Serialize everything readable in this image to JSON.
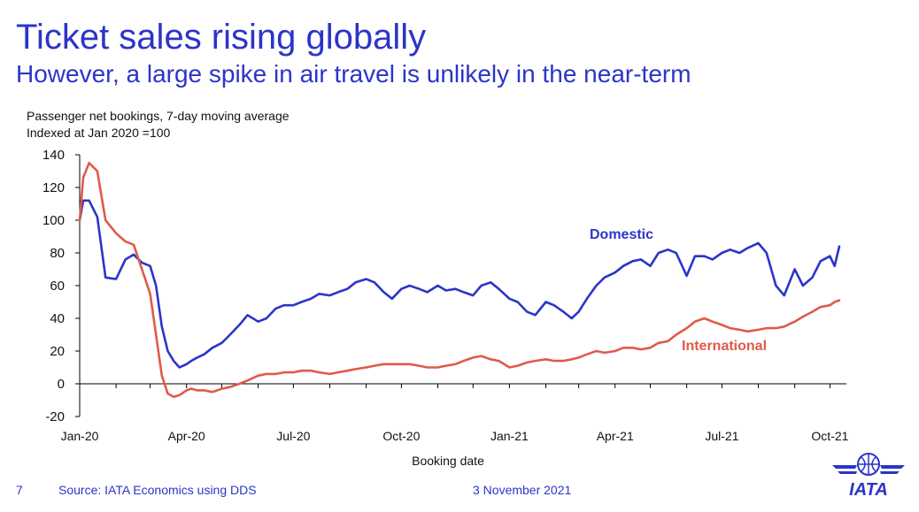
{
  "header": {
    "title": "Ticket sales rising globally",
    "subtitle": "However, a large spike in air travel is unlikely in the near-term"
  },
  "notes": {
    "line1": "Passenger net bookings,  7-day moving average",
    "line2": "Indexed at Jan 2020 =100"
  },
  "footer": {
    "page": "7",
    "source": "Source: IATA Economics using DDS",
    "date": "3 November 2021"
  },
  "logo": {
    "text": "IATA"
  },
  "colors": {
    "brand": "#2b35c8",
    "domestic": "#2b35c8",
    "international": "#e05a48"
  },
  "chart_data": {
    "type": "line",
    "xlabel": "Booking date",
    "ylabel": "",
    "ylim": [
      -20,
      140
    ],
    "yticks": [
      -20,
      0,
      20,
      40,
      60,
      80,
      100,
      120,
      140
    ],
    "x_ticks": [
      "Jan-20",
      "Apr-20",
      "Jul-20",
      "Oct-20",
      "Jan-21",
      "Apr-21",
      "Jul-21",
      "Oct-21"
    ],
    "x": [
      "2020-01-01",
      "2020-01-04",
      "2020-01-09",
      "2020-01-16",
      "2020-01-23",
      "2020-02-01",
      "2020-02-09",
      "2020-02-16",
      "2020-02-23",
      "2020-03-01",
      "2020-03-06",
      "2020-03-11",
      "2020-03-16",
      "2020-03-21",
      "2020-03-26",
      "2020-04-01",
      "2020-04-05",
      "2020-04-10",
      "2020-04-16",
      "2020-04-23",
      "2020-05-01",
      "2020-05-08",
      "2020-05-16",
      "2020-05-23",
      "2020-06-01",
      "2020-06-08",
      "2020-06-16",
      "2020-06-23",
      "2020-07-01",
      "2020-07-08",
      "2020-07-16",
      "2020-07-23",
      "2020-08-01",
      "2020-08-08",
      "2020-08-16",
      "2020-08-23",
      "2020-09-01",
      "2020-09-08",
      "2020-09-16",
      "2020-09-23",
      "2020-10-01",
      "2020-10-08",
      "2020-10-16",
      "2020-10-23",
      "2020-11-01",
      "2020-11-08",
      "2020-11-16",
      "2020-11-23",
      "2020-12-01",
      "2020-12-08",
      "2020-12-16",
      "2020-12-23",
      "2021-01-01",
      "2021-01-08",
      "2021-01-16",
      "2021-01-23",
      "2021-02-01",
      "2021-02-08",
      "2021-02-16",
      "2021-02-23",
      "2021-03-01",
      "2021-03-08",
      "2021-03-16",
      "2021-03-23",
      "2021-04-01",
      "2021-04-08",
      "2021-04-16",
      "2021-04-23",
      "2021-05-01",
      "2021-05-08",
      "2021-05-16",
      "2021-05-23",
      "2021-06-01",
      "2021-06-08",
      "2021-06-16",
      "2021-06-23",
      "2021-07-01",
      "2021-07-08",
      "2021-07-16",
      "2021-07-23",
      "2021-08-01",
      "2021-08-08",
      "2021-08-16",
      "2021-08-23",
      "2021-09-01",
      "2021-09-08",
      "2021-09-16",
      "2021-09-23",
      "2021-10-01",
      "2021-10-05",
      "2021-10-09"
    ],
    "series": [
      {
        "name": "Domestic",
        "color": "#2b35c8",
        "values": [
          100,
          112,
          112,
          102,
          65,
          64,
          76,
          79,
          74,
          72,
          60,
          35,
          20,
          14,
          10,
          12,
          14,
          16,
          18,
          22,
          25,
          30,
          36,
          42,
          38,
          40,
          46,
          48,
          48,
          50,
          52,
          55,
          54,
          56,
          58,
          62,
          64,
          62,
          56,
          52,
          58,
          60,
          58,
          56,
          60,
          57,
          58,
          56,
          54,
          60,
          62,
          58,
          52,
          50,
          44,
          42,
          50,
          48,
          44,
          40,
          44,
          52,
          60,
          65,
          68,
          72,
          75,
          76,
          72,
          80,
          82,
          80,
          66,
          78,
          78,
          76,
          80,
          82,
          80,
          83,
          86,
          80,
          60,
          54,
          70,
          60,
          65,
          75,
          78,
          72,
          84
        ]
      },
      {
        "name": "International",
        "color": "#e05a48",
        "values": [
          100,
          126,
          135,
          130,
          100,
          92,
          87,
          85,
          70,
          55,
          30,
          5,
          -6,
          -8,
          -7,
          -4,
          -3,
          -4,
          -4,
          -5,
          -3,
          -2,
          0,
          2,
          5,
          6,
          6,
          7,
          7,
          8,
          8,
          7,
          6,
          7,
          8,
          9,
          10,
          11,
          12,
          12,
          12,
          12,
          11,
          10,
          10,
          11,
          12,
          14,
          16,
          17,
          15,
          14,
          10,
          11,
          13,
          14,
          15,
          14,
          14,
          15,
          16,
          18,
          20,
          19,
          20,
          22,
          22,
          21,
          22,
          25,
          26,
          30,
          34,
          38,
          40,
          38,
          36,
          34,
          33,
          32,
          33,
          34,
          34,
          35,
          38,
          41,
          44,
          47,
          48,
          50,
          51
        ]
      }
    ],
    "annotations": [
      "Domestic",
      "International"
    ],
    "grid": false
  }
}
